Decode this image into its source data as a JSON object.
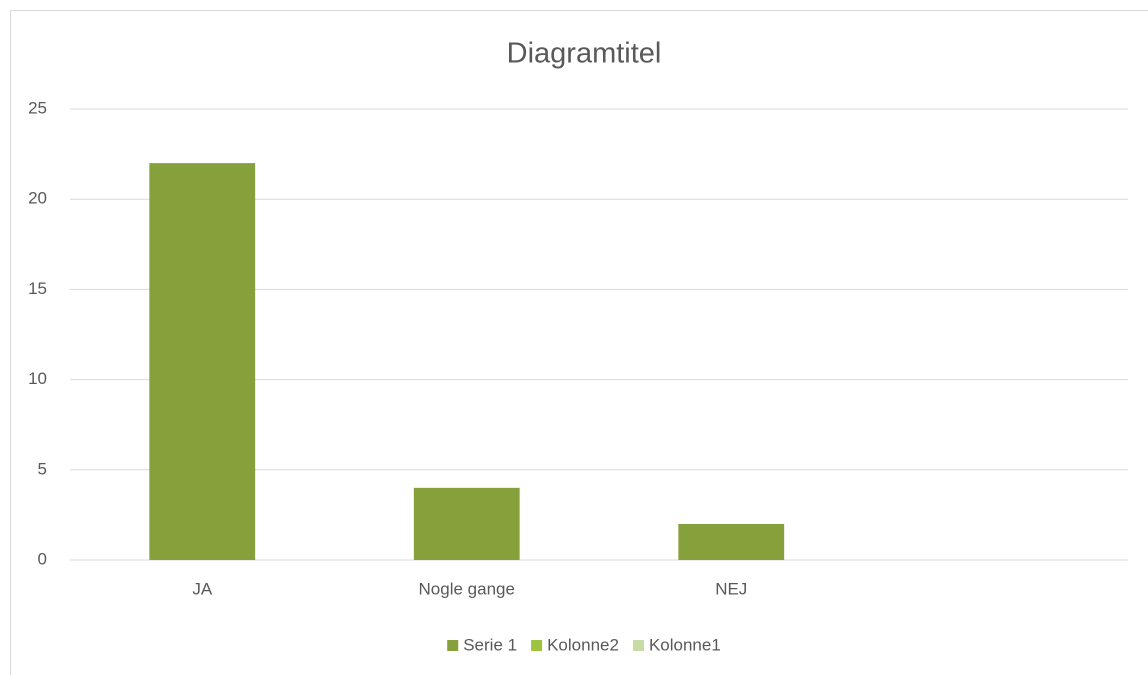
{
  "chart_data": {
    "type": "bar",
    "title": "Diagramtitel",
    "categories": [
      "JA",
      "Nogle gange",
      "NEJ",
      null
    ],
    "series": [
      {
        "name": "Serie 1",
        "color": "#86a03c",
        "values": [
          22,
          4,
          2,
          null
        ]
      },
      {
        "name": "Kolonne2",
        "color": "#9fc23f",
        "values": [
          null,
          null,
          null,
          null
        ]
      },
      {
        "name": "Kolonne1",
        "color": "#c8dba7",
        "values": [
          null,
          null,
          null,
          null
        ]
      }
    ],
    "ylim": [
      0,
      25
    ],
    "yticks": [
      0,
      5,
      10,
      15,
      20,
      25
    ],
    "grid": true,
    "legend": "bottom"
  }
}
